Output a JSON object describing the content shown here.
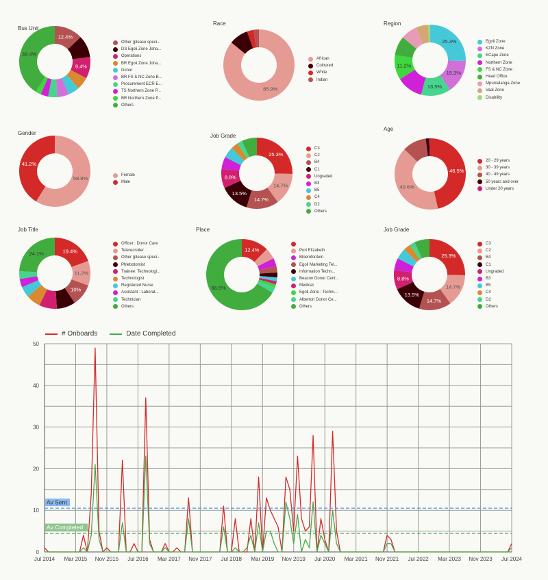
{
  "donuts": [
    {
      "title": "Bus Unit",
      "labels": [
        "Other (please speci...",
        "DS Egoli Zone Joha...",
        "Operations",
        "BR Egoli Zone Joha...",
        "Donor",
        "BR FS & NC Zone B...",
        "Procurement ECR E...",
        "TS Northern Zone P...",
        "BR Northern Zone P...",
        "Others"
      ],
      "values": [
        12.4,
        9.6,
        9.4,
        5.5,
        5.0,
        5.0,
        4.0,
        3.3,
        2.4,
        39.4
      ],
      "colors": [
        "#b45252",
        "#3b0006",
        "#d1206e",
        "#d9892f",
        "#45c9d8",
        "#d070d8",
        "#47d48e",
        "#d020d8",
        "#3fd63f",
        "#41ad3f"
      ],
      "pct": [
        "12.4%",
        "",
        "9.4%",
        "",
        "",
        "",
        "",
        "",
        "",
        "39.4%"
      ],
      "pctColors": [
        "#fff",
        "",
        "#fff",
        "",
        "",
        "",
        "",
        "",
        "",
        "#333"
      ]
    },
    {
      "title": "Race",
      "labels": [
        "African",
        "Coloured",
        "White",
        "Indian"
      ],
      "values": [
        85.9,
        8.7,
        3.0,
        2.4
      ],
      "colors": [
        "#e59b93",
        "#3b0006",
        "#d32a29",
        "#b45252"
      ],
      "pct": [
        "85.9%",
        "",
        "",
        ""
      ],
      "pctColors": [
        "#555",
        "",
        "",
        ""
      ]
    },
    {
      "title": "Region",
      "labels": [
        "Egoli Zone",
        "KZN Zone",
        "ECape Zone",
        "Northern Zone",
        "FS & NC Zone",
        "Head Office",
        "Mpumalanga Zone",
        "Vaal Zone",
        "Disability"
      ],
      "values": [
        25.3,
        15.3,
        13.5,
        12.0,
        11.2,
        8.8,
        7.4,
        5.5,
        1.0
      ],
      "colors": [
        "#45c9d8",
        "#d070d8",
        "#47d48e",
        "#d020d8",
        "#3fd63f",
        "#41ad3f",
        "#e79bb5",
        "#d2a775",
        "#a5d77a"
      ],
      "pct": [
        "25.3%",
        "15.3%",
        "13.5%",
        "",
        "11.2%",
        "",
        "",
        "",
        ""
      ],
      "pctColors": [
        "#333",
        "#333",
        "#333",
        "",
        "#333",
        "",
        "",
        "",
        ""
      ]
    },
    {
      "title": "Gender",
      "labels": [
        "Female",
        "Male"
      ],
      "values": [
        58.8,
        41.2
      ],
      "colors": [
        "#e59b93",
        "#d32a29"
      ],
      "pct": [
        "58.8%",
        "41.2%"
      ],
      "pctColors": [
        "#555",
        "#fff"
      ]
    },
    {
      "title": "Job Grade",
      "labels": [
        "C3",
        "C2",
        "B4",
        "C1",
        "Ungraded",
        "B3",
        "B5",
        "C4",
        "D2",
        "Others"
      ],
      "values": [
        25.3,
        14.7,
        14.7,
        13.5,
        8.8,
        5.5,
        5.0,
        3.3,
        2.3,
        6.9
      ],
      "colors": [
        "#d32a29",
        "#e59b93",
        "#b45252",
        "#3b0006",
        "#d1206e",
        "#d020d8",
        "#45c9d8",
        "#d9892f",
        "#47d48e",
        "#41ad3f"
      ],
      "pct": [
        "25.3%",
        "14.7%",
        "14.7%",
        "13.5%",
        "8.8%",
        "",
        "",
        "",
        "",
        ""
      ],
      "pctColors": [
        "#fff",
        "#555",
        "#fff",
        "#fff",
        "#fff",
        "",
        "",
        "",
        "",
        ""
      ]
    },
    {
      "title": "Age",
      "labels": [
        "20 - 29 years",
        "30 - 39 years",
        "40 - 49 years",
        "50 years and over",
        "Under 20 years"
      ],
      "values": [
        46.5,
        40.6,
        10.9,
        1.6,
        0.4
      ],
      "colors": [
        "#d32a29",
        "#e59b93",
        "#b45252",
        "#3b0006",
        "#d1206e"
      ],
      "pct": [
        "46.5%",
        "40.6%",
        "",
        "",
        ""
      ],
      "pctColors": [
        "#fff",
        "#555",
        "",
        "",
        ""
      ]
    },
    {
      "title": "Job Title",
      "labels": [
        "Officer : Donor Care",
        "Telerecruiter",
        "Other (please speci...",
        "Phlebotomist",
        "Trainee: Technologi...",
        "Technologist",
        "Registered Nurse",
        "Assistant : Laborat...",
        "Technician",
        "Others"
      ],
      "values": [
        19.4,
        11.2,
        10.0,
        8.5,
        8.0,
        6.5,
        5.0,
        3.8,
        3.5,
        24.1
      ],
      "colors": [
        "#d32a29",
        "#e59b93",
        "#b45252",
        "#3b0006",
        "#d1206e",
        "#d9892f",
        "#45c9d8",
        "#d020d8",
        "#47d48e",
        "#41ad3f"
      ],
      "pct": [
        "19.4%",
        "11.2%",
        "10%",
        "",
        "",
        "",
        "",
        "",
        "",
        "24.1%"
      ],
      "pctColors": [
        "#fff",
        "#555",
        "#fff",
        "",
        "",
        "",
        "",
        "",
        "",
        "#333"
      ]
    },
    {
      "title": "Place",
      "labels": [
        "",
        "Port Elizabeth",
        "Bloemfontein",
        "Egoli Marketing Tel...",
        "Information Techn...",
        "Beacon Donor Cent...",
        "Medical",
        "Egoli Zone : Techni...",
        "Alberton Donor Ce...",
        "Others"
      ],
      "values": [
        12.4,
        5.0,
        3.7,
        3.0,
        2.2,
        1.7,
        1.5,
        1.6,
        2.4,
        66.5
      ],
      "colors": [
        "#d32a29",
        "#e59b93",
        "#d020d8",
        "#b45252",
        "#3b0006",
        "#45c9d8",
        "#d1206e",
        "#3fd63f",
        "#47d48e",
        "#41ad3f"
      ],
      "pct": [
        "12.4%",
        "",
        "",
        "",
        "",
        "",
        "",
        "",
        "",
        "66.5%"
      ],
      "pctColors": [
        "#fff",
        "",
        "",
        "",
        "",
        "",
        "",
        "",
        "",
        "#333"
      ]
    },
    {
      "title": "Job Grade",
      "labels": [
        "C3",
        "C2",
        "B4",
        "C1",
        "Ungraded",
        "B3",
        "B5",
        "C4",
        "D2",
        "Others"
      ],
      "values": [
        25.3,
        14.7,
        14.7,
        13.5,
        8.8,
        5.5,
        5.0,
        3.3,
        2.3,
        6.9
      ],
      "colors": [
        "#d32a29",
        "#e59b93",
        "#b45252",
        "#3b0006",
        "#d1206e",
        "#d020d8",
        "#45c9d8",
        "#d9892f",
        "#47d48e",
        "#41ad3f"
      ],
      "pct": [
        "25.3%",
        "14.7%",
        "14.7%",
        "13.5%",
        "8.8%",
        "",
        "",
        "",
        "",
        ""
      ],
      "pctColors": [
        "#fff",
        "#555",
        "#fff",
        "#fff",
        "#fff",
        "",
        "",
        "",
        "",
        ""
      ]
    }
  ],
  "chart_data": {
    "type": "line",
    "title": "",
    "xlabel": "",
    "ylabel": "",
    "ylim": [
      0,
      50
    ],
    "yticks": [
      "0",
      "10",
      "20",
      "30",
      "40",
      "50"
    ],
    "ytick_values": [
      0,
      10,
      20,
      30,
      40,
      50
    ],
    "xtick_labels": [
      "Jul 2014",
      "Mar 2015",
      "Nov 2015",
      "Jul 2016",
      "Mar 2017",
      "Nov 2017",
      "Jul 2018",
      "Mar 2019",
      "Nov 2019",
      "Jul 2020",
      "Mar 2021",
      "Nov 2021",
      "Jul 2022",
      "Mar 2023",
      "Nov 2023",
      "Jul 2024"
    ],
    "x_start": "Jul 2014",
    "x_unit": "month",
    "x_count": 121,
    "legend_position": "top-left",
    "grid": true,
    "series": [
      {
        "name": "# Onboards",
        "color": "#d32a29",
        "points": [
          [
            0,
            1
          ],
          [
            10,
            4
          ],
          [
            11,
            0
          ],
          [
            12,
            14
          ],
          [
            13,
            49
          ],
          [
            14,
            5
          ],
          [
            15,
            0
          ],
          [
            16,
            1
          ],
          [
            17,
            0
          ],
          [
            19,
            0
          ],
          [
            20,
            22
          ],
          [
            21,
            0
          ],
          [
            22,
            0
          ],
          [
            23,
            2
          ],
          [
            24,
            0
          ],
          [
            25,
            0
          ],
          [
            26,
            37
          ],
          [
            27,
            3
          ],
          [
            28,
            0
          ],
          [
            30,
            0
          ],
          [
            31,
            2
          ],
          [
            32,
            0
          ],
          [
            33,
            0
          ],
          [
            34,
            1
          ],
          [
            35,
            0
          ],
          [
            36,
            0
          ],
          [
            37,
            13
          ],
          [
            38,
            0
          ],
          [
            45,
            0
          ],
          [
            46,
            11
          ],
          [
            47,
            0
          ],
          [
            48,
            0
          ],
          [
            49,
            8
          ],
          [
            50,
            0
          ],
          [
            52,
            0
          ],
          [
            53,
            8
          ],
          [
            54,
            0
          ],
          [
            55,
            18
          ],
          [
            56,
            0
          ],
          [
            57,
            13
          ],
          [
            58,
            10
          ],
          [
            59,
            8
          ],
          [
            60,
            6
          ],
          [
            61,
            0
          ],
          [
            62,
            18
          ],
          [
            63,
            15
          ],
          [
            64,
            5
          ],
          [
            65,
            23
          ],
          [
            66,
            8
          ],
          [
            67,
            5
          ],
          [
            68,
            6
          ],
          [
            69,
            28
          ],
          [
            70,
            0
          ],
          [
            71,
            8
          ],
          [
            72,
            3
          ],
          [
            73,
            0
          ],
          [
            74,
            29
          ],
          [
            75,
            5
          ],
          [
            76,
            0
          ],
          [
            87,
            0
          ],
          [
            88,
            4
          ],
          [
            89,
            3
          ],
          [
            90,
            0
          ],
          [
            119,
            0
          ],
          [
            120,
            2
          ]
        ]
      },
      {
        "name": "Date Completed",
        "color": "#4aa84a",
        "points": [
          [
            0,
            0
          ],
          [
            10,
            1
          ],
          [
            11,
            0
          ],
          [
            12,
            4
          ],
          [
            13,
            21
          ],
          [
            14,
            3
          ],
          [
            15,
            0
          ],
          [
            19,
            0
          ],
          [
            20,
            7
          ],
          [
            21,
            0
          ],
          [
            25,
            0
          ],
          [
            26,
            23
          ],
          [
            27,
            2
          ],
          [
            28,
            0
          ],
          [
            30,
            0
          ],
          [
            31,
            1
          ],
          [
            32,
            0
          ],
          [
            36,
            0
          ],
          [
            37,
            8
          ],
          [
            38,
            0
          ],
          [
            45,
            0
          ],
          [
            46,
            6
          ],
          [
            47,
            0
          ],
          [
            48,
            0
          ],
          [
            49,
            1
          ],
          [
            50,
            0
          ],
          [
            51,
            0
          ],
          [
            52,
            1
          ],
          [
            53,
            4
          ],
          [
            54,
            0
          ],
          [
            55,
            7
          ],
          [
            56,
            0
          ],
          [
            57,
            5
          ],
          [
            58,
            5
          ],
          [
            59,
            2
          ],
          [
            60,
            0
          ],
          [
            61,
            0
          ],
          [
            62,
            12
          ],
          [
            63,
            8
          ],
          [
            64,
            2
          ],
          [
            65,
            9
          ],
          [
            66,
            0
          ],
          [
            67,
            3
          ],
          [
            68,
            1
          ],
          [
            69,
            12
          ],
          [
            70,
            0
          ],
          [
            71,
            4
          ],
          [
            72,
            2
          ],
          [
            73,
            0
          ],
          [
            74,
            10
          ],
          [
            75,
            2
          ],
          [
            76,
            0
          ],
          [
            87,
            0
          ],
          [
            88,
            2
          ],
          [
            89,
            2
          ],
          [
            90,
            0
          ],
          [
            119,
            0
          ],
          [
            120,
            1
          ]
        ]
      }
    ],
    "reference_lines": [
      {
        "label": "Av Sent",
        "value": 10.5,
        "color": "#4f95e8",
        "labelBg": "#8ab8ef",
        "labelColor": "#333"
      },
      {
        "label": "Av Completed",
        "value": 4.5,
        "color": "#3f9a3f",
        "labelBg": "#8fc58f",
        "labelColor": "#fff"
      }
    ]
  }
}
